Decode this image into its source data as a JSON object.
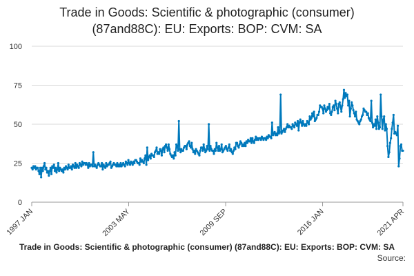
{
  "title_lines": [
    "Trade in Goods: Scientific & photographic (consumer)",
    "(87and88C): EU: Exports: BOP: CVM: SA"
  ],
  "footer": {
    "caption": "Trade in Goods: Scientific & photographic (consumer) (87and88C): EU: Exports: BOP: CVM: SA",
    "source": "Source:"
  },
  "colors": {
    "line": "#0079bc",
    "grid": "#d8d8d8",
    "axis": "#999999"
  },
  "chart_data": {
    "type": "line",
    "title": "Trade in Goods: Scientific & photographic (consumer) (87and88C): EU: Exports: BOP: CVM: SA",
    "xlabel": "",
    "ylabel": "",
    "ylim": [
      0,
      100
    ],
    "yticks": [
      0,
      25,
      50,
      75,
      100
    ],
    "xticks": [
      "1997 JAN",
      "2003 MAY",
      "2009 SEP",
      "2016 JAN",
      "2021 APR"
    ],
    "x_range": [
      "1997 JAN",
      "2021 APR"
    ],
    "grid": "horizontal",
    "legend": "none",
    "markers": true,
    "frequency": "monthly",
    "series": [
      {
        "values": [
          22,
          21,
          23,
          22,
          23,
          21,
          22,
          22,
          20,
          18,
          22,
          16,
          22,
          20,
          23,
          25,
          21,
          22,
          19,
          20,
          17,
          20,
          22,
          18,
          23,
          22,
          24,
          20,
          22,
          19,
          21,
          25,
          20,
          22,
          21,
          20,
          21,
          19,
          22,
          21,
          23,
          22,
          21,
          24,
          22,
          22,
          23,
          21,
          24,
          23,
          22,
          25,
          22,
          24,
          23,
          22,
          25,
          24,
          23,
          26,
          24,
          25,
          25,
          24,
          25,
          24,
          22,
          25,
          23,
          24,
          24,
          23,
          32,
          23,
          24,
          23,
          22,
          24,
          25,
          24,
          23,
          23,
          25,
          21,
          24,
          23,
          22,
          25,
          23,
          24,
          24,
          25,
          26,
          22,
          23,
          24,
          25,
          24,
          24,
          23,
          25,
          23,
          24,
          23,
          25,
          23,
          24,
          25,
          24,
          23,
          26,
          25,
          24,
          27,
          25,
          24,
          26,
          25,
          24,
          26,
          25,
          27,
          27,
          26,
          25,
          25,
          24,
          28,
          26,
          27,
          26,
          25,
          28,
          30,
          24,
          35,
          27,
          29,
          30,
          28,
          31,
          30,
          30,
          29,
          32,
          33,
          35,
          31,
          32,
          31,
          34,
          33,
          30,
          34,
          35,
          32,
          36,
          37,
          35,
          33,
          37,
          34,
          31,
          30,
          29,
          30,
          28,
          32,
          30,
          37,
          36,
          33,
          52,
          34,
          32,
          34,
          33,
          33,
          35,
          36,
          36,
          34,
          37,
          38,
          39,
          36,
          35,
          38,
          34,
          32,
          33,
          31,
          34,
          33,
          32,
          31,
          30,
          33,
          35,
          35,
          33,
          37,
          34,
          32,
          33,
          36,
          34,
          50,
          33,
          36,
          34,
          33,
          33,
          31,
          34,
          33,
          38,
          35,
          33,
          36,
          33,
          34,
          37,
          32,
          33,
          34,
          35,
          36,
          34,
          33,
          35,
          37,
          33,
          34,
          32,
          31,
          33,
          35,
          34,
          38,
          38,
          36,
          35,
          37,
          39,
          38,
          36,
          37,
          36,
          38,
          36,
          39,
          38,
          40,
          39,
          39,
          41,
          38,
          41,
          39,
          38,
          40,
          42,
          40,
          41,
          40,
          41,
          41,
          40,
          42,
          41,
          40,
          41,
          41,
          40,
          42,
          41,
          43,
          42,
          42,
          41,
          51,
          43,
          44,
          45,
          43,
          44,
          43,
          48,
          44,
          45,
          69,
          44,
          45,
          46,
          47,
          45,
          47,
          48,
          50,
          48,
          49,
          48,
          48,
          47,
          50,
          49,
          48,
          51,
          50,
          49,
          52,
          46,
          51,
          53,
          51,
          49,
          52,
          50,
          49,
          50,
          49,
          52,
          51,
          50,
          55,
          53,
          54,
          57,
          55,
          58,
          52,
          53,
          54,
          56,
          56,
          58,
          62,
          61,
          61,
          60,
          57,
          62,
          60,
          58,
          59,
          61,
          60,
          63,
          57,
          56,
          58,
          61,
          62,
          59,
          65,
          63,
          60,
          57,
          63,
          64,
          61,
          58,
          62,
          66,
          72,
          67,
          70,
          68,
          69,
          62,
          65,
          55,
          60,
          64,
          62,
          59,
          57,
          55,
          58,
          53,
          52,
          51,
          50,
          52,
          53,
          55,
          56,
          60,
          59,
          58,
          58,
          56,
          57,
          54,
          53,
          52,
          65,
          51,
          48,
          50,
          49,
          53,
          47,
          55,
          51,
          47,
          48,
          69,
          55,
          47,
          53,
          55,
          46,
          50,
          47,
          36,
          29,
          32,
          38,
          41,
          47,
          51,
          56,
          44,
          45,
          44,
          43,
          49,
          23,
          28,
          36,
          37,
          33,
          33
        ]
      }
    ]
  }
}
